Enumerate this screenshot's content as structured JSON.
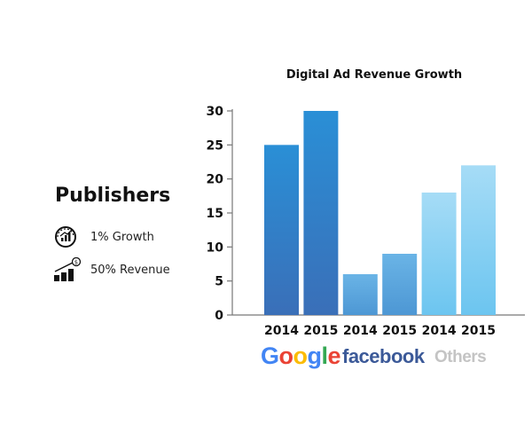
{
  "side_panel": {
    "title": "Publishers",
    "stats": [
      {
        "icon": "growth-gauge-icon",
        "label": "1% Growth"
      },
      {
        "icon": "revenue-bars-icon",
        "label": "50% Revenue"
      }
    ]
  },
  "brands": {
    "google": "Google",
    "facebook": "facebook",
    "others": "Others"
  },
  "colors": {
    "google_bar": "#2a82c9",
    "facebook_bar": "#5aaae0",
    "others_bar": "#8fd3f5",
    "facebook_brand": "#3b5998",
    "others_brand": "#c4c4c4",
    "google_letters": [
      "#4285F4",
      "#EA4335",
      "#FBBC05",
      "#4285F4",
      "#34A853",
      "#EA4335"
    ]
  },
  "chart_data": {
    "type": "bar",
    "title": "Digital Ad Revenue Growth",
    "categories": [
      "2014",
      "2015",
      "2014",
      "2015",
      "2014",
      "2015"
    ],
    "groups": [
      "Google",
      "facebook",
      "Others"
    ],
    "values": [
      25,
      30,
      6,
      9,
      18,
      22
    ],
    "ylim": [
      0,
      30
    ],
    "yticks": [
      0,
      5,
      10,
      15,
      20,
      25,
      30
    ],
    "xlabel": "",
    "ylabel": "",
    "grid": false
  }
}
